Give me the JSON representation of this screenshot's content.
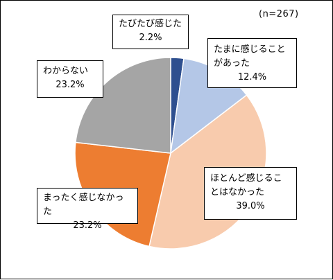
{
  "note": "(n=267)",
  "chart_data": {
    "type": "pie",
    "title": "",
    "slices": [
      {
        "label": "たびたび感じた",
        "value": 2.2,
        "pct_text": "2.2%",
        "color": "#2e4f8f"
      },
      {
        "label": "たまに感じること\nがあった",
        "value": 12.4,
        "pct_text": "12.4%",
        "color": "#b4c7e7"
      },
      {
        "label": "ほとんど感じるこ\nとはなかった",
        "value": 39.0,
        "pct_text": "39.0%",
        "color": "#f8cbad"
      },
      {
        "label": "まったく感じなかった",
        "value": 23.2,
        "pct_text": "23.2%",
        "color": "#ed7d31"
      },
      {
        "label": "わからない",
        "value": 23.2,
        "pct_text": "23.2%",
        "color": "#a5a5a5"
      }
    ]
  }
}
